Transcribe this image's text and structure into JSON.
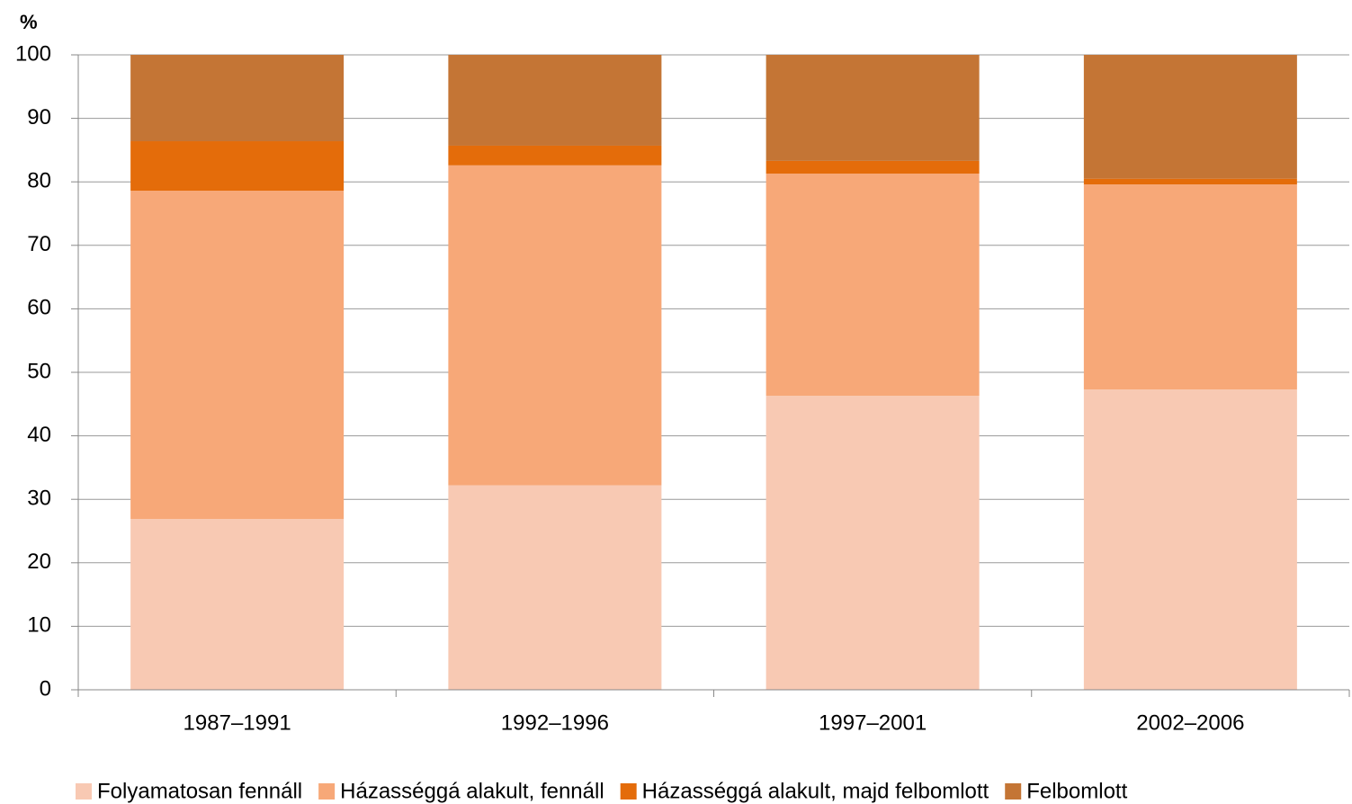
{
  "chart_data": {
    "type": "stacked_bar",
    "ylabel": "%",
    "categories": [
      "1987–1991",
      "1992–1996",
      "1997–2001",
      "2002–2006"
    ],
    "series": [
      {
        "name": "Folyamatosan fennáll",
        "color": "#f8c9b3",
        "values": [
          26.9,
          32.2,
          46.3,
          47.3
        ]
      },
      {
        "name": "Házasséggá alakult, fennáll",
        "color": "#f7a878",
        "values": [
          51.7,
          50.4,
          35.0,
          32.3
        ]
      },
      {
        "name": "Házasséggá alakult, majd felbomlott",
        "color": "#e46c0a",
        "values": [
          7.8,
          3.1,
          2.0,
          0.9
        ]
      },
      {
        "name": "Felbomlott",
        "color": "#c47535",
        "values": [
          13.6,
          14.3,
          16.7,
          19.5
        ]
      }
    ],
    "ylim": [
      0,
      100
    ],
    "yticks": [
      0,
      10,
      20,
      30,
      40,
      50,
      60,
      70,
      80,
      90,
      100
    ],
    "grid": true
  }
}
